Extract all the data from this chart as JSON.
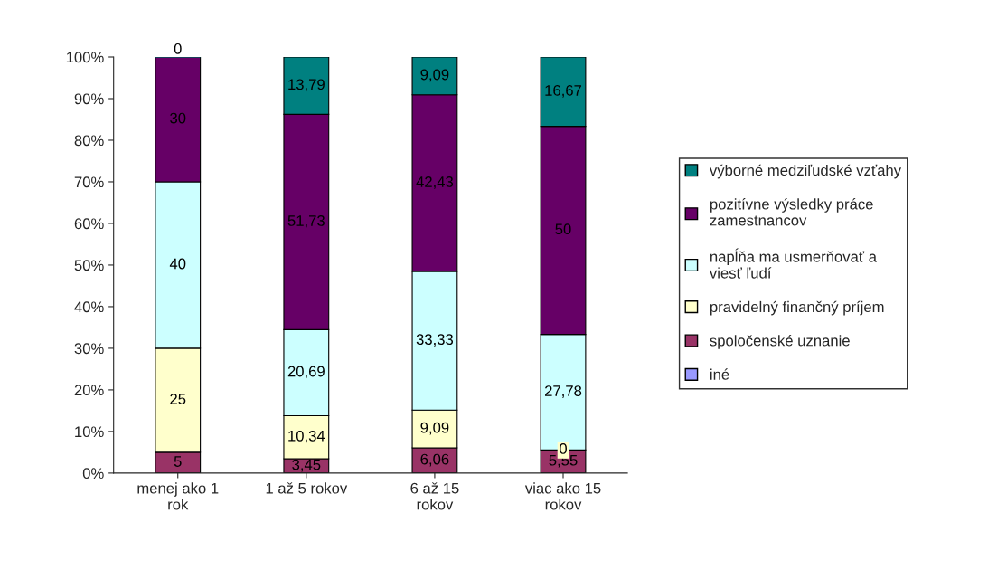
{
  "chart_data": {
    "type": "bar",
    "stacked": true,
    "categories": [
      "menej ako 1 rok",
      "1 až 5 rokov",
      "6 až 15 rokov",
      "viac ako 15 rokov"
    ],
    "ylim": [
      0,
      100
    ],
    "yticks": [
      {
        "value": 0,
        "label": "0%"
      },
      {
        "value": 10,
        "label": "10%"
      },
      {
        "value": 20,
        "label": "20%"
      },
      {
        "value": 30,
        "label": "30%"
      },
      {
        "value": 40,
        "label": "40%"
      },
      {
        "value": 50,
        "label": "50%"
      },
      {
        "value": 60,
        "label": "60%"
      },
      {
        "value": 70,
        "label": "70%"
      },
      {
        "value": 80,
        "label": "80%"
      },
      {
        "value": 90,
        "label": "90%"
      },
      {
        "value": 100,
        "label": "100%"
      }
    ],
    "legend": "right",
    "grid": false,
    "series": [
      {
        "name": "iné",
        "color": "#9999ff",
        "values": [
          0,
          0,
          0,
          0
        ],
        "value_labels": [
          null,
          null,
          null,
          null
        ]
      },
      {
        "name": "spoločenské uznanie",
        "color": "#993366",
        "values": [
          5,
          3.45,
          6.06,
          5.55
        ],
        "value_labels": [
          "5",
          "3,45",
          "6,06",
          "5,55"
        ]
      },
      {
        "name": "pravidelný finančný príjem",
        "color": "#ffffcc",
        "values": [
          25,
          10.34,
          9.09,
          0
        ],
        "value_labels": [
          "25",
          "10,34",
          "9,09",
          "0"
        ]
      },
      {
        "name": "napĺňa ma usmerňovať a viesť ľudí",
        "color": "#ccffff",
        "values": [
          40,
          20.69,
          33.33,
          27.78
        ],
        "value_labels": [
          "40",
          "20,69",
          "33,33",
          "27,78"
        ]
      },
      {
        "name": "pozitívne výsledky práce zamestnancov",
        "color": "#660066",
        "values": [
          30,
          51.73,
          42.43,
          50
        ],
        "value_labels": [
          "30",
          "51,73",
          "42,43",
          "50"
        ]
      },
      {
        "name": "výborné medziľudské vzťahy",
        "color": "#008080",
        "values": [
          0,
          13.79,
          9.09,
          16.67
        ],
        "value_labels": [
          "0",
          "13,79",
          "9,09",
          "16,67"
        ]
      }
    ]
  }
}
